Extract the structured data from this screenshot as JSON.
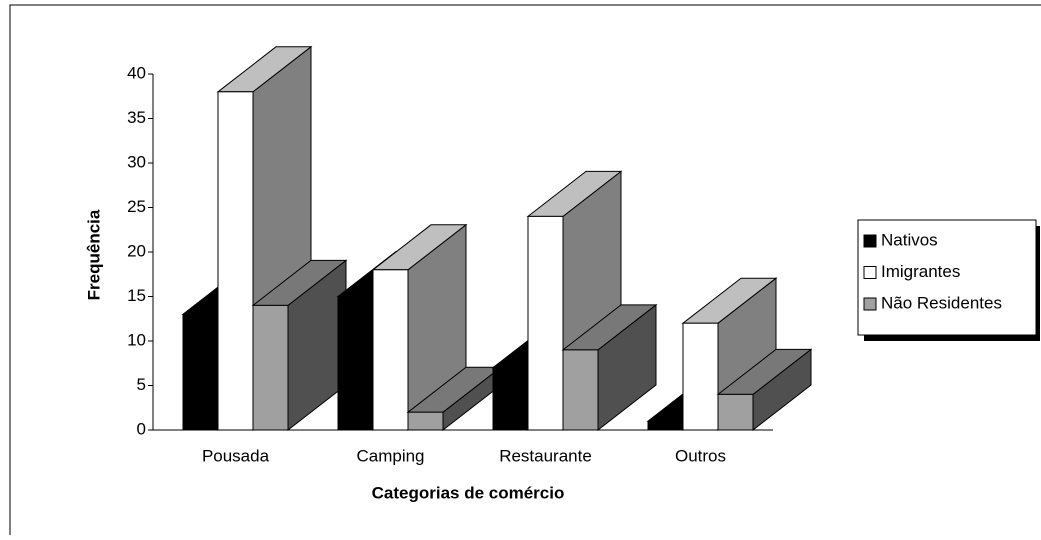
{
  "chart_data": {
    "type": "bar3d",
    "x_label": "Categorias de comércio",
    "y_label": "Frequência",
    "categories": [
      "Pousada",
      "Camping",
      "Restaurante",
      "Outros"
    ],
    "series": [
      {
        "name": "Nativos",
        "color": "#000000",
        "values": [
          13,
          15,
          7,
          1
        ]
      },
      {
        "name": "Imigrantes",
        "color": "#ffffff",
        "values": [
          38,
          18,
          24,
          12
        ]
      },
      {
        "name": "Não Residentes",
        "color": "#a0a0a0",
        "values": [
          14,
          2,
          9,
          4
        ]
      }
    ],
    "ylim": [
      0,
      40
    ],
    "yticks": [
      0,
      5,
      10,
      15,
      20,
      25,
      30,
      35,
      40
    ],
    "legend": "right"
  }
}
